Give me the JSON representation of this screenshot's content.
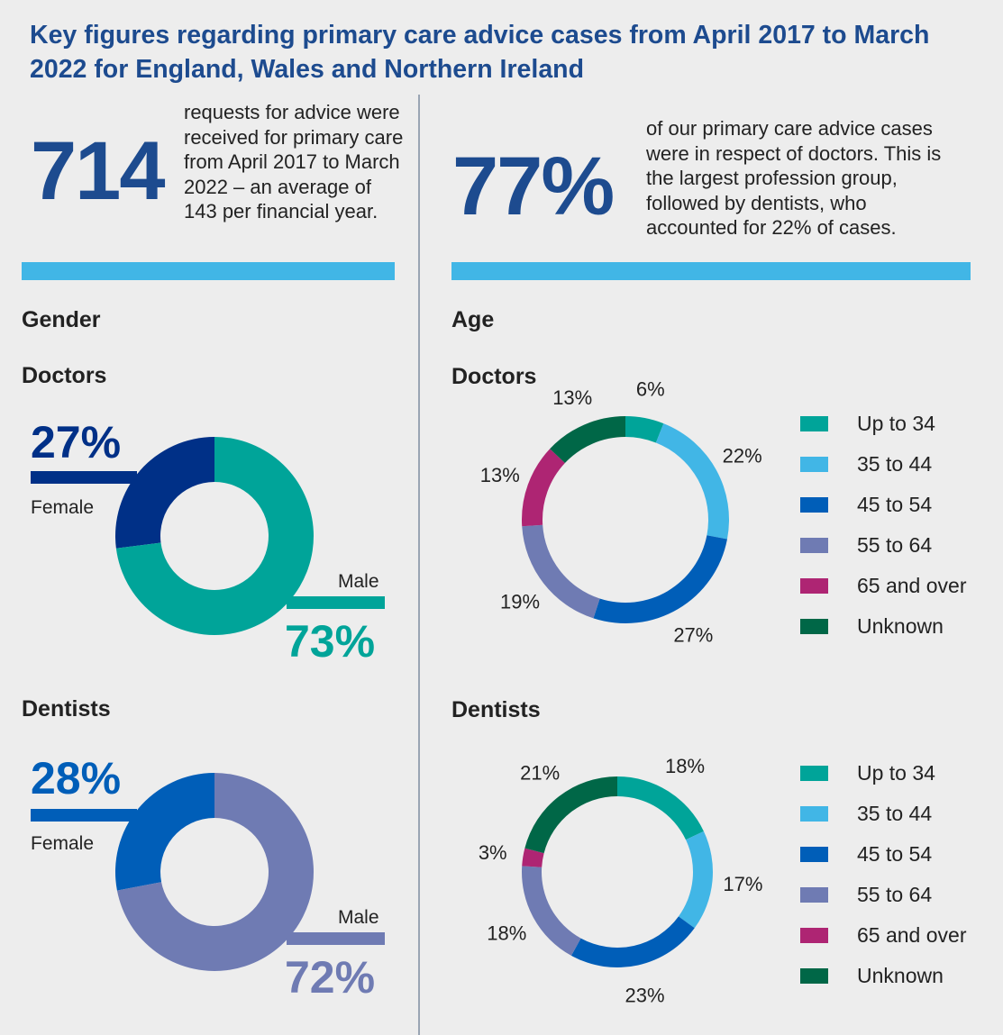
{
  "title": "Key figures regarding primary care advice cases from April 2017 to March 2022 for England, Wales and Northern Ireland",
  "left_figure": {
    "number": "714",
    "text": "requests for advice were received for primary care from April 2017 to March 2022 – an average of 143 per financial year."
  },
  "right_figure": {
    "number": "77%",
    "text": "of our primary care advice cases were in respect of doctors. This is the largest profession group, followed by dentists, who accounted for 22% of cases."
  },
  "gender": {
    "heading": "Gender"
  },
  "age": {
    "heading": "Age"
  },
  "colors": {
    "accent_bar": "#41b6e6",
    "title": "#1d4b8f"
  },
  "chart_data": [
    {
      "type": "pie",
      "subtitle": "Doctors",
      "group": "Gender",
      "categories": [
        "Female",
        "Male"
      ],
      "values": [
        27,
        73
      ],
      "labels": [
        "27%",
        "73%"
      ],
      "colors": [
        "#003087",
        "#00a499"
      ]
    },
    {
      "type": "pie",
      "subtitle": "Dentists",
      "group": "Gender",
      "categories": [
        "Female",
        "Male"
      ],
      "values": [
        28,
        72
      ],
      "labels": [
        "28%",
        "72%"
      ],
      "colors": [
        "#005eb8",
        "#6f7bb3"
      ]
    },
    {
      "type": "pie",
      "subtitle": "Doctors",
      "group": "Age",
      "categories": [
        "Up to 34",
        "35 to 44",
        "45 to 54",
        "55 to 64",
        "65 and over",
        "Unknown"
      ],
      "values": [
        6,
        22,
        27,
        19,
        13,
        13
      ],
      "labels": [
        "6%",
        "22%",
        "27%",
        "19%",
        "13%",
        "13%"
      ],
      "colors": [
        "#00a499",
        "#41b6e6",
        "#005eb8",
        "#6f7bb3",
        "#ae2573",
        "#006747"
      ],
      "legend": "right"
    },
    {
      "type": "pie",
      "subtitle": "Dentists",
      "group": "Age",
      "categories": [
        "Up to 34",
        "35 to 44",
        "45 to 54",
        "55 to 64",
        "65 and over",
        "Unknown"
      ],
      "values": [
        18,
        17,
        23,
        18,
        3,
        21
      ],
      "labels": [
        "18%",
        "17%",
        "23%",
        "18%",
        "3%",
        "21%"
      ],
      "colors": [
        "#00a499",
        "#41b6e6",
        "#005eb8",
        "#6f7bb3",
        "#ae2573",
        "#006747"
      ],
      "legend": "right"
    }
  ]
}
